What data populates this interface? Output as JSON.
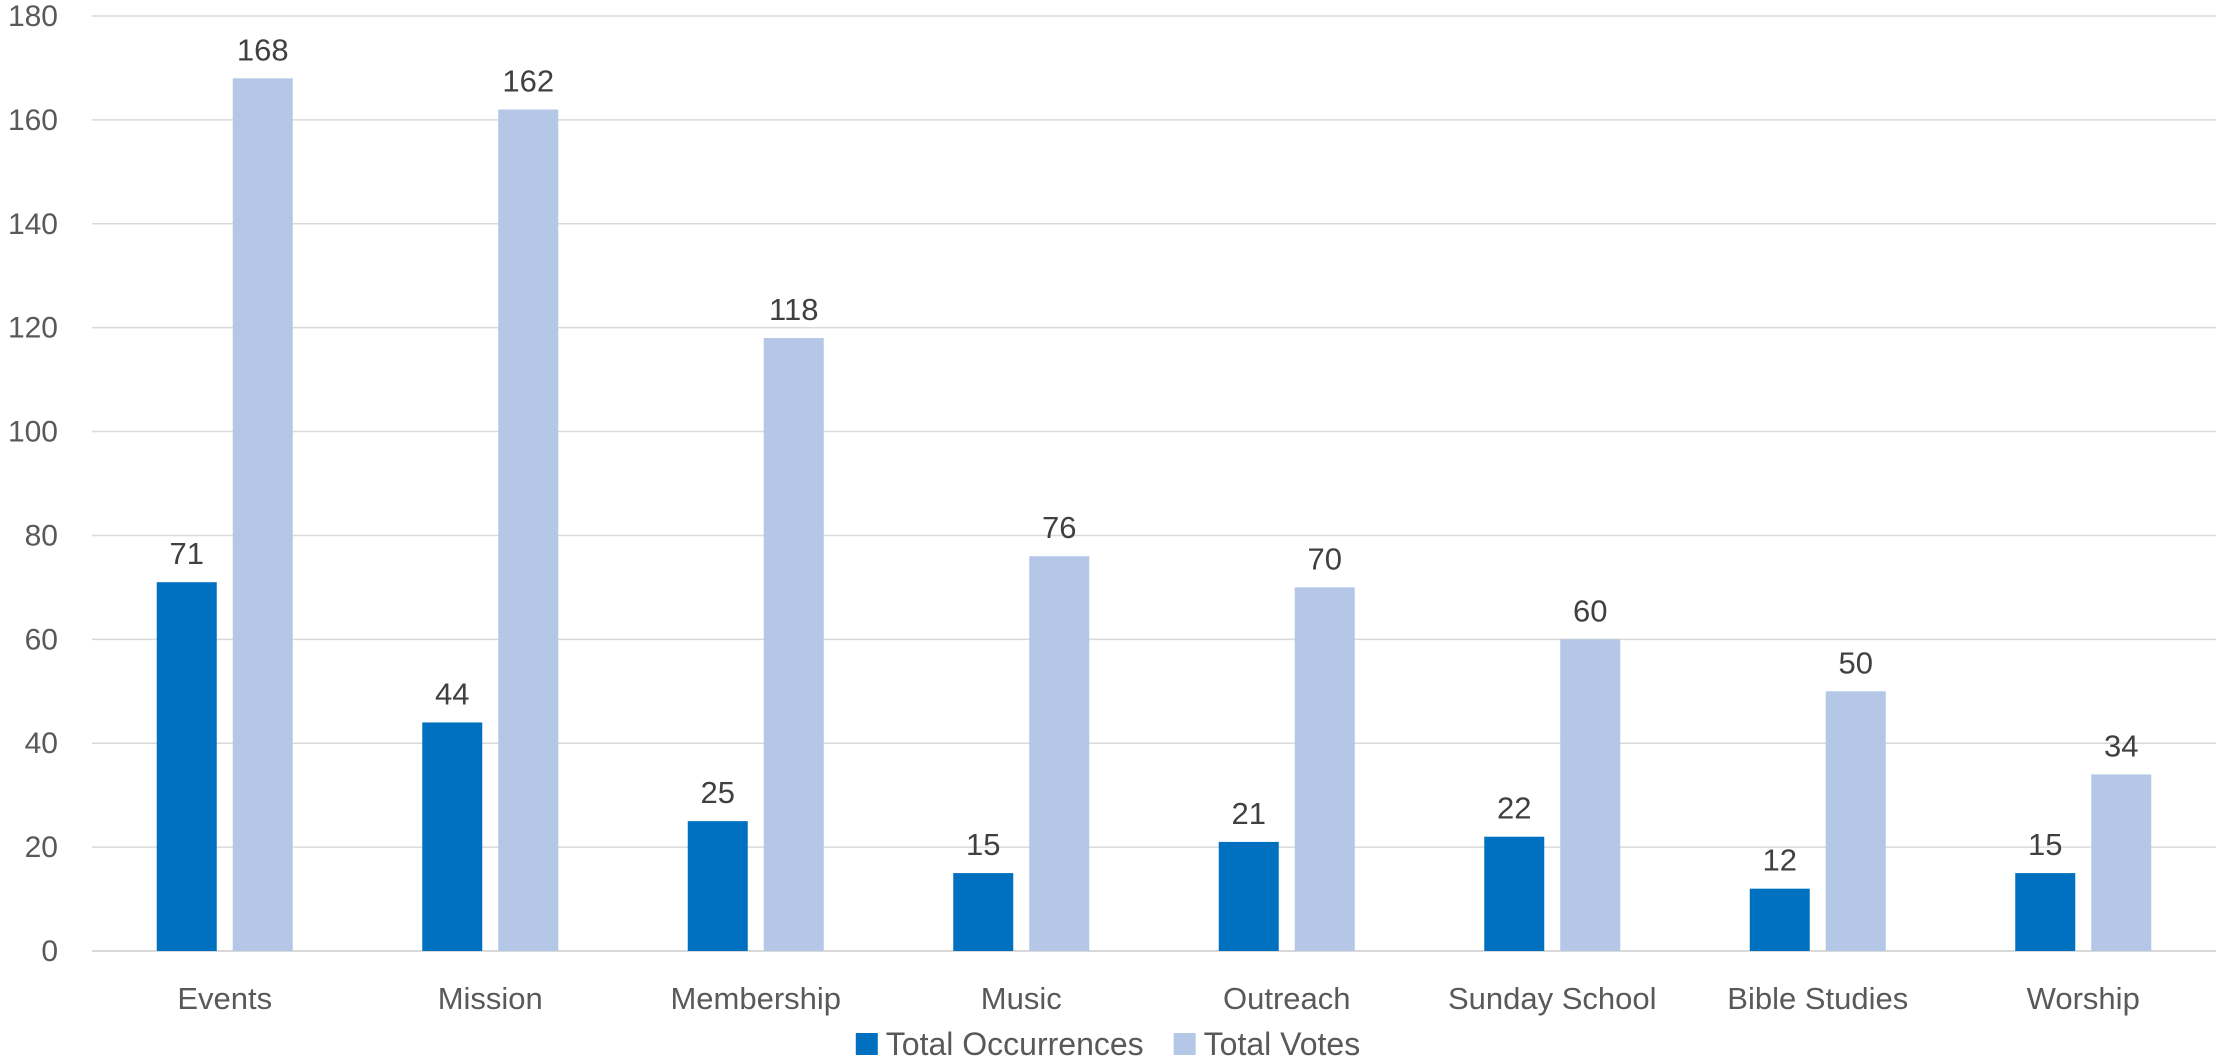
{
  "chart_data": {
    "type": "bar",
    "title": "",
    "xlabel": "",
    "ylabel": "",
    "categories": [
      "Events",
      "Mission",
      "Membership",
      "Music",
      "Outreach",
      "Sunday School",
      "Bible Studies",
      "Worship"
    ],
    "series": [
      {
        "name": "Total Occurrences",
        "color": "#0070c0",
        "values": [
          71,
          44,
          25,
          15,
          21,
          22,
          12,
          15
        ]
      },
      {
        "name": "Total Votes",
        "color": "#b4c7e7",
        "values": [
          168,
          162,
          118,
          76,
          70,
          60,
          50,
          34
        ]
      }
    ],
    "ylim": [
      0,
      180
    ],
    "yticks": [
      0,
      20,
      40,
      60,
      80,
      100,
      120,
      140,
      160,
      180
    ],
    "grid": true,
    "data_labels": true,
    "legend_position": "bottom"
  }
}
